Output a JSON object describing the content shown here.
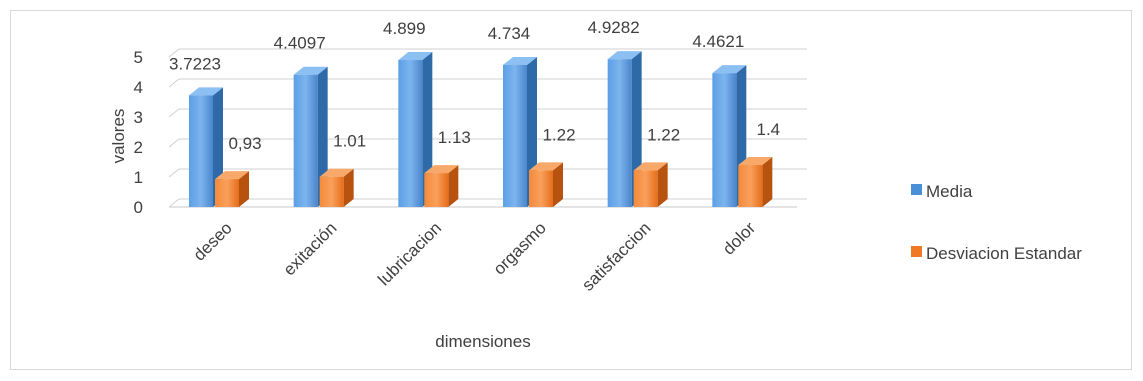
{
  "chart_data": {
    "type": "bar",
    "style": "3d-clustered-column",
    "categories": [
      "deseo",
      "exitación",
      "lubricacion",
      "orgasmo",
      "satisfaccion",
      "dolor"
    ],
    "series": [
      {
        "name": "Media",
        "values": [
          3.7223,
          4.4097,
          4.899,
          4.734,
          4.9282,
          4.4621
        ],
        "labels": [
          "3.7223",
          "4.4097",
          "4.899",
          "4.734",
          "4.9282",
          "4.4621"
        ],
        "color": "#4a90d9"
      },
      {
        "name": "Desviacion Estandar",
        "values": [
          0.93,
          1.01,
          1.13,
          1.22,
          1.22,
          1.4
        ],
        "labels": [
          "0,93",
          "1.01",
          "1.13",
          "1.22",
          "1.22",
          "1.4"
        ],
        "color": "#f07a24"
      }
    ],
    "xlabel": "dimensiones",
    "ylabel": "valores",
    "ylim": [
      0,
      5
    ],
    "yticks": [
      "0",
      "1",
      "2",
      "3",
      "4",
      "5"
    ],
    "grid": true,
    "legend_position": "right"
  }
}
